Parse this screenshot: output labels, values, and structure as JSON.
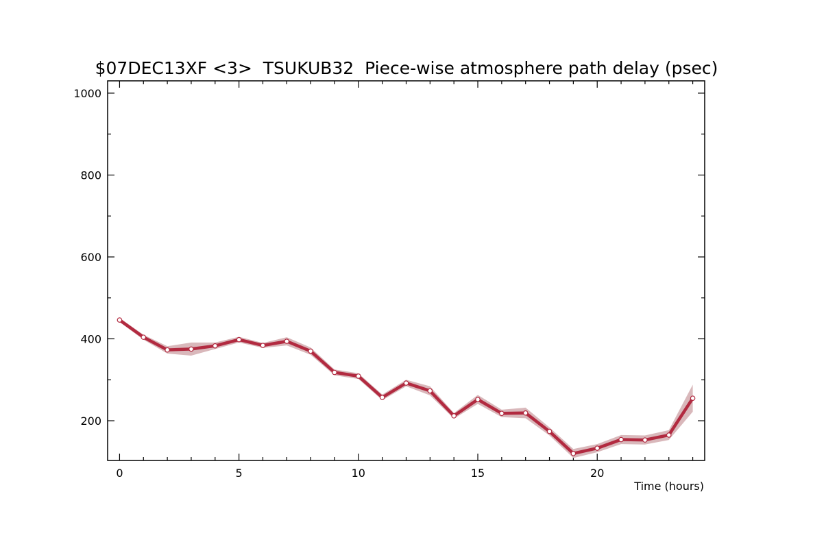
{
  "chart_data": {
    "type": "line",
    "title": "$07DEC13XF <3>  TSUKUB32  Piece-wise atmosphere path delay (psec)",
    "xlabel": "Time (hours)",
    "ylabel": "",
    "xlim": [
      -0.5,
      24.5
    ],
    "ylim": [
      103,
      1030
    ],
    "x_ticks": [
      "0",
      "5",
      "10",
      "15",
      "20"
    ],
    "y_ticks": [
      "200",
      "400",
      "600",
      "800",
      "1000"
    ],
    "grid": false,
    "series": [
      {
        "x": [
          0,
          1,
          2,
          3,
          4,
          5,
          6,
          7,
          8,
          9,
          10,
          11,
          12,
          13,
          14,
          15,
          16,
          17,
          18,
          19,
          20,
          21,
          22,
          23,
          24
        ],
        "values": [
          446,
          404,
          373,
          375,
          383,
          398,
          384,
          394,
          370,
          318,
          309,
          257,
          292,
          273,
          212,
          252,
          218,
          219,
          174,
          120,
          133,
          154,
          153,
          165,
          255
        ],
        "errors": [
          5,
          6,
          9,
          16,
          8,
          7,
          6,
          10,
          9,
          7,
          7,
          7,
          8,
          11,
          7,
          11,
          9,
          13,
          10,
          11,
          10,
          11,
          11,
          12,
          33
        ]
      }
    ],
    "colors": {
      "line": "#b22a40",
      "band": "#d9b8bb",
      "marker_fill": "#ffffff",
      "marker_stroke": "#b22a40"
    }
  }
}
